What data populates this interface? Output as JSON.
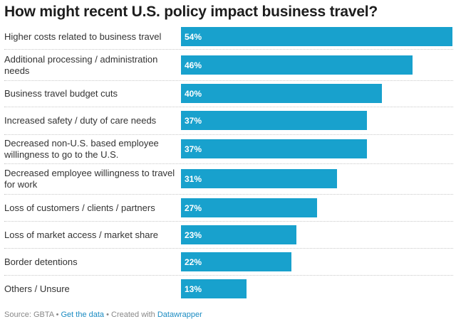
{
  "chart_data": {
    "type": "bar",
    "orientation": "horizontal",
    "title": "How might recent U.S. policy impact business travel?",
    "categories": [
      "Higher costs related to business travel",
      "Additional processing / administration needs",
      "Business travel budget cuts",
      "Increased safety / duty of care needs",
      "Decreased non-U.S. based employee willingness to go to the U.S.",
      "Decreased employee willingness to travel for work",
      "Loss of customers / clients / partners",
      "Loss of market access / market share",
      "Border detentions",
      "Others / Unsure"
    ],
    "values": [
      54,
      46,
      40,
      37,
      37,
      31,
      27,
      23,
      22,
      13
    ],
    "value_labels": [
      "54%",
      "46%",
      "40%",
      "37%",
      "37%",
      "31%",
      "27%",
      "23%",
      "22%",
      "13%"
    ],
    "unit": "%",
    "xlim": [
      0,
      54
    ],
    "xlabel": "",
    "ylabel": "",
    "grid": false,
    "bar_color": "#18a1cd"
  },
  "footer": {
    "source": "Source: GBTA",
    "separator": "•",
    "get_data": "Get the data",
    "created_with": "Created with",
    "datawrapper": "Datawrapper"
  }
}
